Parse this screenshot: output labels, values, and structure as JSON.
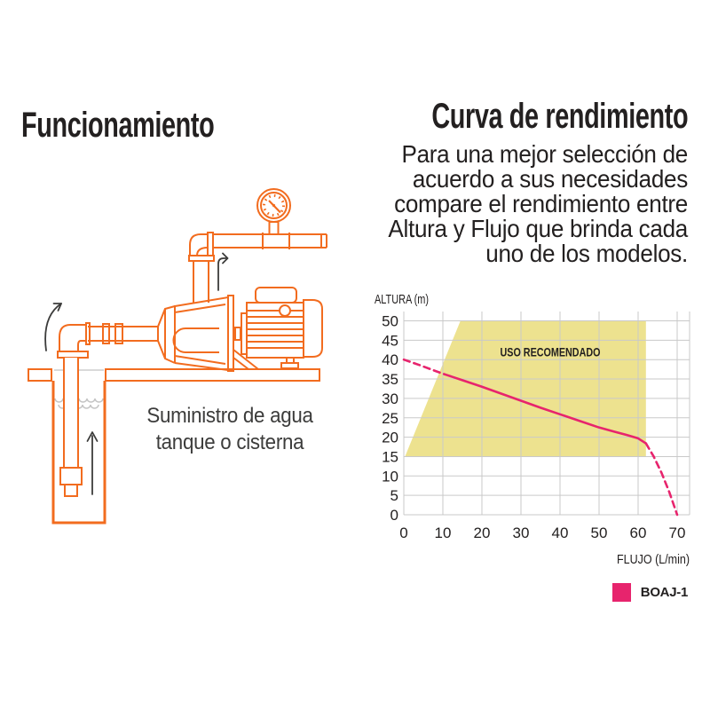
{
  "left_panel": {
    "title": "Funcionamiento",
    "caption_lines": [
      "Suministro de agua",
      "tanque o cisterna"
    ],
    "illustration": {
      "line_color": "#F26C1F",
      "annotation_color": "#3C3C3B",
      "water_color": "#C4C4C4",
      "icon_names": [
        "pressure-gauge-icon",
        "discharge-pipe",
        "discharge-elbow",
        "jet-pump-icon",
        "motor-icon",
        "pump-bracket",
        "platform",
        "well-cistern-icon",
        "suction-pipe",
        "suction-elbow",
        "foot-valve-icon",
        "water-level-waves",
        "flow-arrow-inlet-icon",
        "flow-arrow-discharge-icon",
        "flow-arrow-well-icon"
      ]
    }
  },
  "right_panel": {
    "title": "Curva de rendimiento",
    "description_lines": [
      "Para una mejor selección de",
      "acuerdo a sus necesidades",
      "compare el rendimiento entre",
      "Altura y Flujo que brinda cada",
      "uno de los modelos."
    ]
  },
  "chart_data": {
    "type": "line",
    "title": "",
    "xlabel": "FLUJO (L/min)",
    "ylabel": "ALTURA (m)",
    "xticks": [
      0,
      10,
      20,
      30,
      40,
      50,
      60,
      70
    ],
    "yticks": [
      0,
      5,
      10,
      15,
      20,
      25,
      30,
      35,
      40,
      45,
      50
    ],
    "xlim": [
      0,
      73
    ],
    "ylim": [
      0,
      53
    ],
    "grid": true,
    "grid_color": "#C9C9C9",
    "text_color": "#232020",
    "recommended_zone": {
      "label": "USO RECOMENDADO",
      "color": "#EDE28F",
      "polygon": [
        [
          0.3,
          15
        ],
        [
          14.5,
          50
        ],
        [
          62,
          50
        ],
        [
          62,
          15
        ]
      ],
      "label_pos": [
        37.5,
        42
      ]
    },
    "series": [
      {
        "name": "BOAJ-1",
        "color": "#E7246D",
        "segments": [
          {
            "style": "dashed",
            "points": [
              [
                0,
                40
              ],
              [
                4,
                38.6
              ],
              [
                8,
                37.1
              ],
              [
                10.5,
                36.2
              ]
            ]
          },
          {
            "style": "solid",
            "points": [
              [
                10.5,
                36.2
              ],
              [
                15,
                34.7
              ],
              [
                20,
                33
              ],
              [
                25,
                31.2
              ],
              [
                30,
                29.4
              ],
              [
                35,
                27.6
              ],
              [
                40,
                25.9
              ],
              [
                45,
                24.2
              ],
              [
                50,
                22.5
              ],
              [
                54,
                21.4
              ],
              [
                57,
                20.6
              ],
              [
                60,
                19.7
              ],
              [
                62,
                18.4
              ]
            ]
          },
          {
            "style": "dashed",
            "points": [
              [
                62,
                18.4
              ],
              [
                64,
                15
              ],
              [
                66,
                10.8
              ],
              [
                68,
                5.8
              ],
              [
                70,
                0
              ]
            ]
          }
        ]
      }
    ],
    "legend": [
      {
        "label": "BOAJ-1",
        "color": "#E7246D"
      }
    ],
    "legend_position": "bottom-right"
  }
}
